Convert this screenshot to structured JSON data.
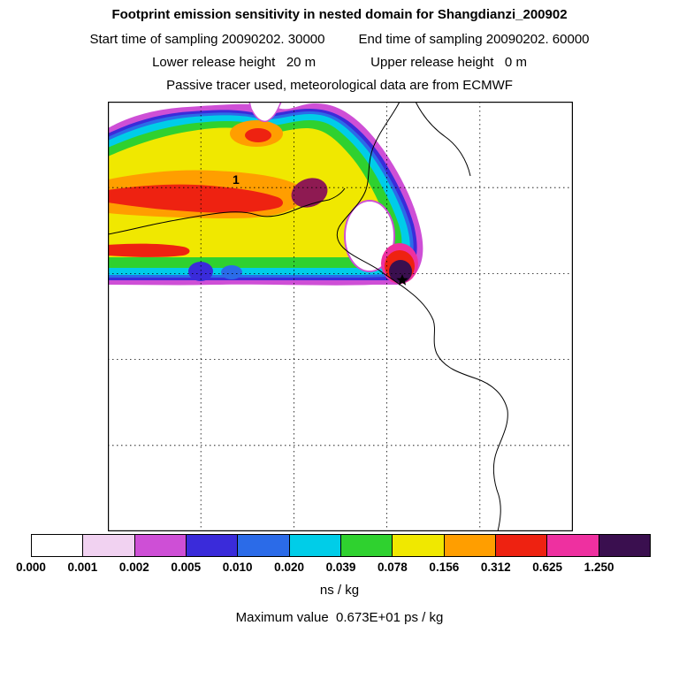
{
  "header": {
    "title": "Footprint emission sensitivity in nested domain for Shangdianzi_200902",
    "line_sampling": {
      "start": "Start time of sampling 20090202. 30000",
      "end": "End time of sampling 20090202. 60000"
    },
    "line_release": {
      "lower": "Lower release height   20 m",
      "upper": "Upper release height   0 m"
    },
    "line_tracer": "Passive tracer used, meteorological data are from ECMWF"
  },
  "map": {
    "domain_label": "1",
    "marker": "star at release site",
    "extra_colors": {
      "crimson": "#8E1A52"
    }
  },
  "colorbar": {
    "tick_labels": [
      "0.000",
      "0.001",
      "0.002",
      "0.005",
      "0.010",
      "0.020",
      "0.039",
      "0.078",
      "0.156",
      "0.312",
      "0.625",
      "1.250"
    ],
    "colors": [
      "#FFFFFF",
      "#F1D2F1",
      "#CE4FD6",
      "#3A2BDA",
      "#2B6BE8",
      "#00CDE8",
      "#2FD12F",
      "#F0E800",
      "#FF9E00",
      "#EE2211",
      "#EE30A0",
      "#3A0F4F"
    ],
    "unit_label": "ns / kg"
  },
  "footer": {
    "max_value": "Maximum value  0.673E+01 ps / kg"
  },
  "chart_data": {
    "type": "heatmap",
    "title": "Footprint emission sensitivity in nested domain for Shangdianzi_200902",
    "station": "Shangdianzi",
    "period": "200902",
    "sampling_start": "20090202. 30000",
    "sampling_end": "20090202. 60000",
    "lower_release_height": "20 m",
    "upper_release_height": "0 m",
    "tracer": "Passive tracer",
    "meteorology": "ECMWF",
    "units": "ns / kg",
    "maximum_value": "0.673E+01 ps / kg",
    "contour_levels": [
      0.0,
      0.001,
      0.002,
      0.005,
      0.01,
      0.02,
      0.039,
      0.078,
      0.156,
      0.312,
      0.625,
      1.25
    ],
    "level_colors": [
      "#FFFFFF",
      "#F1D2F1",
      "#CE4FD6",
      "#3A2BDA",
      "#2B6BE8",
      "#00CDE8",
      "#2FD12F",
      "#F0E800",
      "#FF9E00",
      "#EE2211",
      "#EE30A0",
      "#3A0F4F"
    ],
    "last_color_overflow": true,
    "legend_position": "bottom",
    "grid": {
      "columns": 5,
      "rows": 5,
      "style": "dashed"
    },
    "annotations": [
      {
        "text": "1",
        "role": "nested-domain-label"
      },
      {
        "symbol": "star",
        "role": "release-location",
        "note": "maximum sensitivity (dark purple) adjacent to star near Bohai Bay coast"
      }
    ],
    "plume_description": "Hook-shaped plume extending west from the release star; banded contours magenta-blue-cyan-green-yellow-orange with red streaks mid-left and dark crimson blob near plume center; sharp straight southern edge"
  }
}
